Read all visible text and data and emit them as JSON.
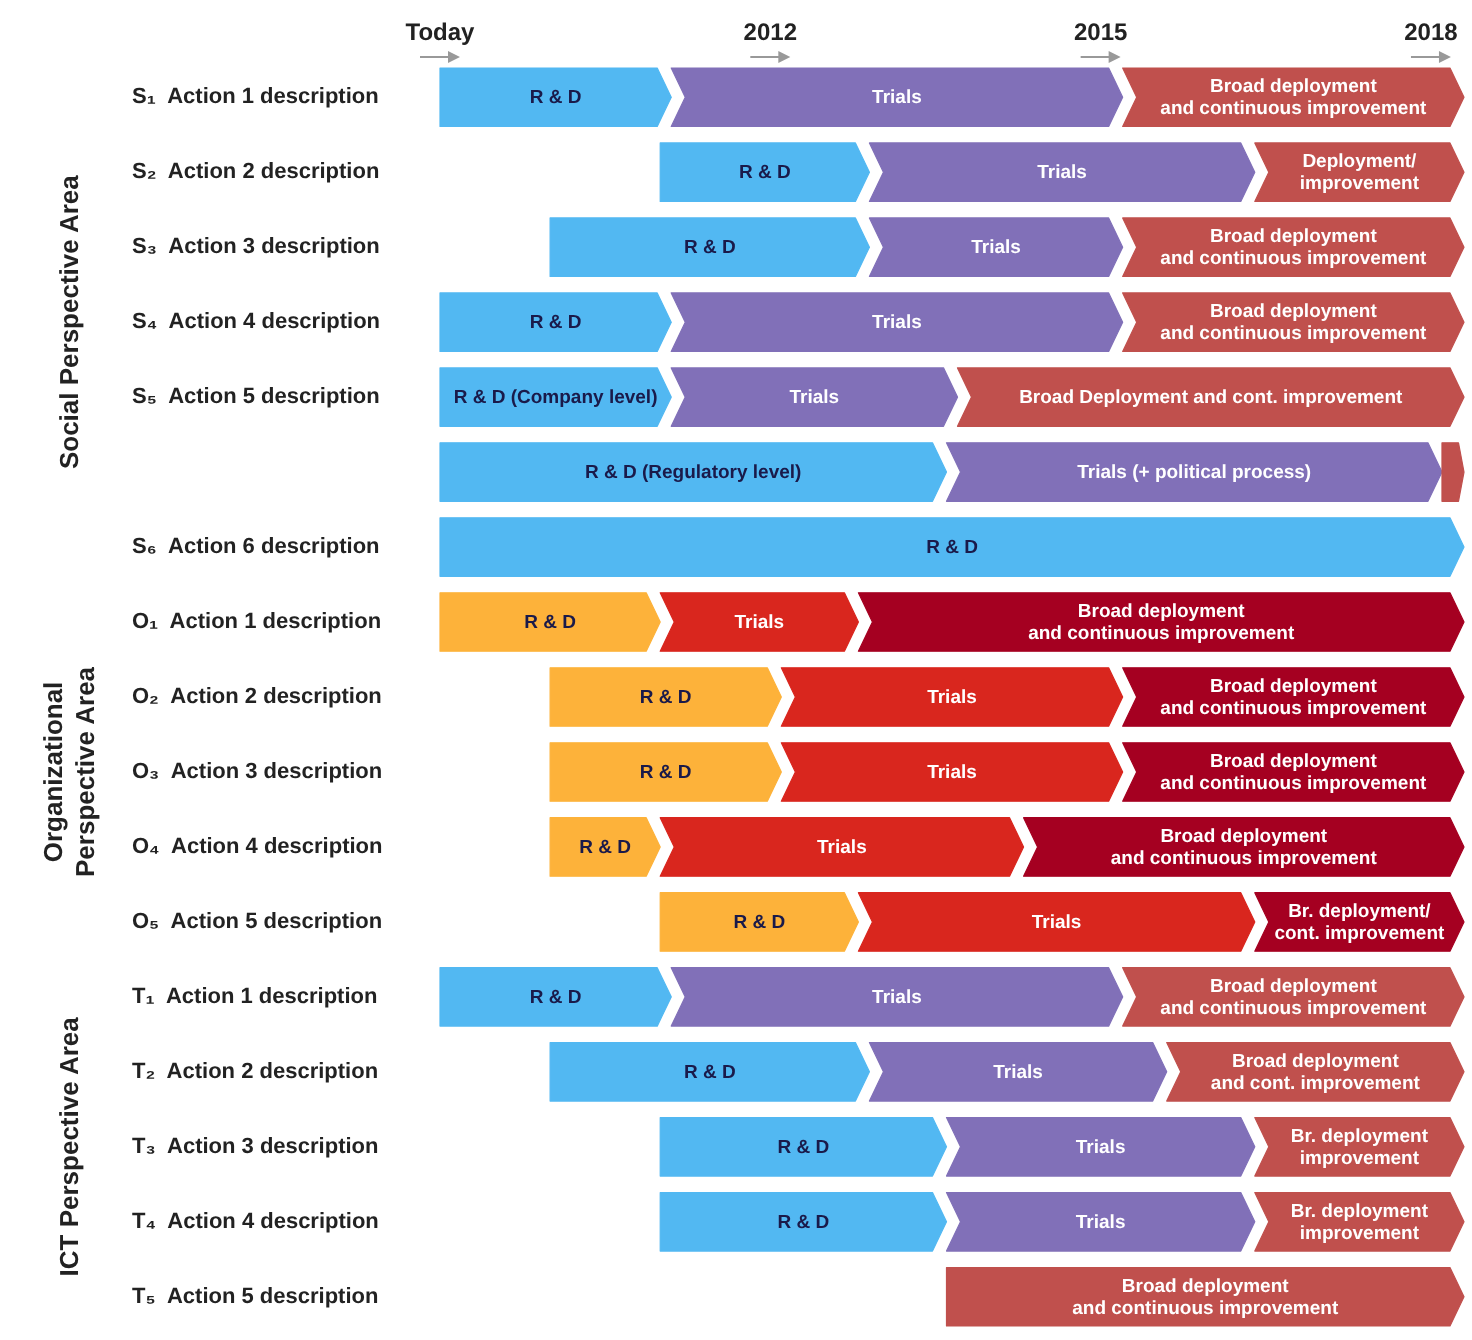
{
  "chart_data": {
    "type": "bar",
    "orientation": "horizontal",
    "grid": false,
    "categories": [
      "S₁  Action 1 description",
      "S₂  Action 2 description",
      "S₃  Action 3 description",
      "S₄  Action 4 description",
      "S₅  Action 5 description",
      null,
      "S₆  Action 6 description",
      "O₁  Action 1 description",
      "O₂  Action 2 description",
      "O₃  Action 3 description",
      "O₄  Action 4 description",
      "O₅  Action 5 description",
      "T₁  Action 1 description",
      "T₂  Action 2 description",
      "T₃  Action 3 description",
      "T₄  Action 4 description",
      "T₅  Action 5 description"
    ],
    "xlim": [
      2009,
      2018.3
    ],
    "xticks": [
      {
        "value": 2009,
        "label": "Today"
      },
      2012,
      2015,
      2018
    ],
    "series": [
      {
        "base": [
          2009,
          2011,
          2010,
          2009,
          2009,
          2009,
          2009,
          2009,
          2010,
          2010,
          2010,
          2011,
          2009,
          2010,
          2011,
          2011,
          null
        ],
        "values": [
          2.1,
          1.9,
          2.9,
          2.1,
          2.1,
          4.6,
          9.3,
          2.0,
          2.1,
          2.1,
          1.0,
          1.8,
          2.1,
          2.9,
          2.6,
          2.6,
          null
        ],
        "colors": [
          "#52b8f2",
          "#52b8f2",
          "#52b8f2",
          "#52b8f2",
          "#52b8f2",
          "#52b8f2",
          "#52b8f2",
          "#fdb23a",
          "#fdb23a",
          "#fdb23a",
          "#fdb23a",
          "#fdb23a",
          "#52b8f2",
          "#52b8f2",
          "#52b8f2",
          "#52b8f2",
          null
        ],
        "value_labels": [
          "R & D",
          "R & D",
          "R & D",
          "R & D",
          "R & D (Company level)",
          "R & D (Regulatory level)",
          "R & D",
          "R & D",
          "R & D",
          "R & D",
          "R & D",
          "R & D",
          "R & D",
          "R & D",
          "R & D",
          "R & D",
          null
        ]
      },
      {
        "base": [
          2011.1,
          2012.9,
          2012.9,
          2011.1,
          2011.1,
          2013.6,
          null,
          2011.0,
          2012.1,
          2012.1,
          2011.0,
          2012.8,
          2011.1,
          2012.9,
          2013.6,
          2013.6,
          null
        ],
        "values": [
          4.1,
          3.5,
          2.3,
          4.1,
          2.6,
          4.5,
          null,
          1.8,
          3.1,
          3.1,
          3.3,
          3.6,
          4.1,
          2.7,
          2.8,
          2.8,
          null
        ],
        "colors": [
          "#8170b8",
          "#8170b8",
          "#8170b8",
          "#8170b8",
          "#8170b8",
          "#8170b8",
          null,
          "#d9261e",
          "#d9261e",
          "#d9261e",
          "#d9261e",
          "#d9261e",
          "#8170b8",
          "#8170b8",
          "#8170b8",
          "#8170b8",
          null
        ],
        "value_labels": [
          "Trials",
          "Trials",
          "Trials",
          "Trials",
          "Trials",
          "Trials (+ political process)",
          null,
          "Trials",
          "Trials",
          "Trials",
          "Trials",
          "Trials",
          "Trials",
          "Trials",
          "Trials",
          "Trials",
          null
        ]
      },
      {
        "base": [
          2015.2,
          2016.4,
          2015.2,
          2015.2,
          2013.7,
          2018.1,
          null,
          2012.8,
          2015.2,
          2015.2,
          2014.3,
          2016.4,
          2015.2,
          2015.6,
          2016.4,
          2016.4,
          2013.6
        ],
        "values": [
          3.1,
          1.9,
          3.1,
          3.1,
          4.6,
          0.2,
          null,
          5.5,
          3.1,
          3.1,
          4.0,
          1.9,
          3.1,
          2.7,
          1.9,
          1.9,
          4.7
        ],
        "colors": [
          "#c0504d",
          "#c0504d",
          "#c0504d",
          "#c0504d",
          "#c0504d",
          "#c0504d",
          null,
          "#a50021",
          "#a50021",
          "#a50021",
          "#a50021",
          "#a50021",
          "#c0504d",
          "#c0504d",
          "#c0504d",
          "#c0504d",
          "#c0504d"
        ],
        "value_labels": [
          "Broad deployment\nand continuous improvement",
          "Deployment/\nimprovement",
          "Broad deployment\nand continuous improvement",
          "Broad deployment\nand continuous improvement",
          "Broad Deployment and cont. improvement",
          null,
          null,
          "Broad deployment\nand continuous improvement",
          "Broad deployment\nand continuous improvement",
          "Broad deployment\nand continuous improvement",
          "Broad deployment\nand continuous improvement",
          "Br. deployment/\ncont. improvement",
          "Broad deployment\nand continuous improvement",
          "Broad deployment\nand cont. improvement",
          "Br. deployment\nimprovement",
          "Br. deployment\nimprovement",
          "Broad deployment\nand continuous improvement"
        ]
      }
    ],
    "annotations": [
      "Social  Perspective Area",
      "Organizational\nPerspective Area",
      "ICT Perspective Area"
    ]
  }
}
